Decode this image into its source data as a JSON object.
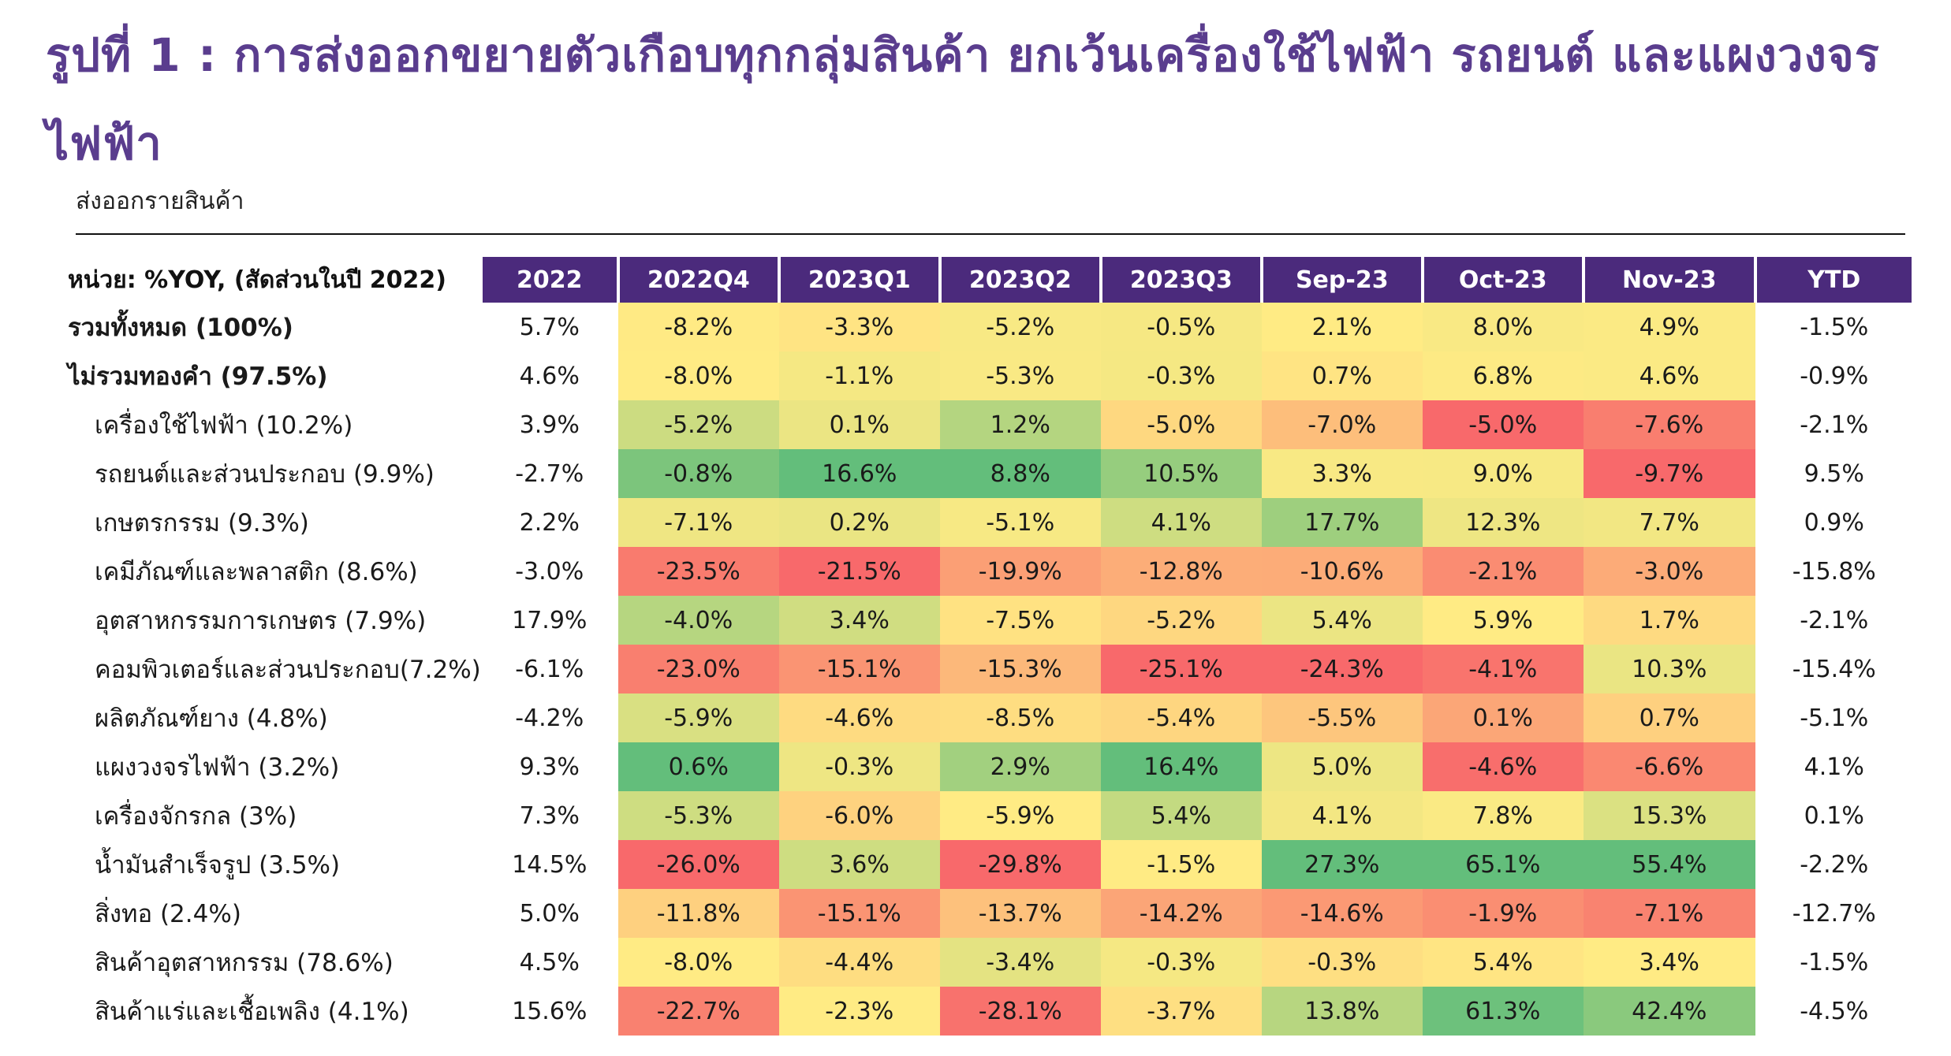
{
  "title": "รูปที่ 1 : การส่งออกขยายตัวเกือบทุกกลุ่มสินค้า ยกเว้นเครื่องใช้ไฟฟ้า รถยนต์ และแผงวงจรไฟฟ้า",
  "subtitle": "ส่งออกรายสินค้า",
  "colors": {
    "title": "#5a3d8e",
    "header_bg": "#4b2a7c",
    "low": "#f8696b",
    "mid": "#ffeb84",
    "high": "#63be7b"
  },
  "chart_data": {
    "type": "heatmap",
    "unit_label": "หน่วย: %YOY, (สัดส่วนในปี 2022)",
    "columns": [
      "2022",
      "2022Q4",
      "2023Q1",
      "2023Q2",
      "2023Q3",
      "Sep-23",
      "Oct-23",
      "Nov-23",
      "YTD"
    ],
    "colored_columns": [
      1,
      2,
      3,
      4,
      5,
      6,
      7
    ],
    "rows": [
      {
        "label": "รวมทั้งหมด (100%)",
        "level": 0,
        "values": [
          "5.7%",
          "-8.2%",
          "-3.3%",
          "-5.2%",
          "-0.5%",
          "2.1%",
          "8.0%",
          "4.9%",
          "-1.5%"
        ]
      },
      {
        "label": "ไม่รวมทองคำ (97.5%)",
        "level": 0,
        "values": [
          "4.6%",
          "-8.0%",
          "-1.1%",
          "-5.3%",
          "-0.3%",
          "0.7%",
          "6.8%",
          "4.6%",
          "-0.9%"
        ]
      },
      {
        "label": "เครื่องใช้ไฟฟ้า (10.2%)",
        "level": 1,
        "values": [
          "3.9%",
          "-5.2%",
          "0.1%",
          "1.2%",
          "-5.0%",
          "-7.0%",
          "-5.0%",
          "-7.6%",
          "-2.1%"
        ]
      },
      {
        "label": "รถยนต์และส่วนประกอบ (9.9%)",
        "level": 1,
        "values": [
          "-2.7%",
          "-0.8%",
          "16.6%",
          "8.8%",
          "10.5%",
          "3.3%",
          "9.0%",
          "-9.7%",
          "9.5%"
        ]
      },
      {
        "label": "เกษตรกรรม (9.3%)",
        "level": 1,
        "values": [
          "2.2%",
          "-7.1%",
          "0.2%",
          "-5.1%",
          "4.1%",
          "17.7%",
          "12.3%",
          "7.7%",
          "0.9%"
        ]
      },
      {
        "label": "เคมีภัณฑ์และพลาสติก (8.6%)",
        "level": 1,
        "values": [
          "-3.0%",
          "-23.5%",
          "-21.5%",
          "-19.9%",
          "-12.8%",
          "-10.6%",
          "-2.1%",
          "-3.0%",
          "-15.8%"
        ]
      },
      {
        "label": "อุตสาหกรรมการเกษตร (7.9%)",
        "level": 1,
        "values": [
          "17.9%",
          "-4.0%",
          "3.4%",
          "-7.5%",
          "-5.2%",
          "5.4%",
          "5.9%",
          "1.7%",
          "-2.1%"
        ]
      },
      {
        "label": "คอมพิวเตอร์และส่วนประกอบ(7.2%)",
        "level": 1,
        "values": [
          "-6.1%",
          "-23.0%",
          "-15.1%",
          "-15.3%",
          "-25.1%",
          "-24.3%",
          "-4.1%",
          "10.3%",
          "-15.4%"
        ]
      },
      {
        "label": "ผลิตภัณฑ์ยาง (4.8%)",
        "level": 1,
        "values": [
          "-4.2%",
          "-5.9%",
          "-4.6%",
          "-8.5%",
          "-5.4%",
          "-5.5%",
          "0.1%",
          "0.7%",
          "-5.1%"
        ]
      },
      {
        "label": "แผงวงจรไฟฟ้า (3.2%)",
        "level": 1,
        "values": [
          "9.3%",
          "0.6%",
          "-0.3%",
          "2.9%",
          "16.4%",
          "5.0%",
          "-4.6%",
          "-6.6%",
          "4.1%"
        ]
      },
      {
        "label": "เครื่องจักรกล (3%)",
        "level": 1,
        "values": [
          "7.3%",
          "-5.3%",
          "-6.0%",
          "-5.9%",
          "5.4%",
          "4.1%",
          "7.8%",
          "15.3%",
          "0.1%"
        ]
      },
      {
        "label": "น้ำมันสำเร็จรูป (3.5%)",
        "level": 1,
        "values": [
          "14.5%",
          "-26.0%",
          "3.6%",
          "-29.8%",
          "-1.5%",
          "27.3%",
          "65.1%",
          "55.4%",
          "-2.2%"
        ]
      },
      {
        "label": "สิ่งทอ (2.4%)",
        "level": 1,
        "values": [
          "5.0%",
          "-11.8%",
          "-15.1%",
          "-13.7%",
          "-14.2%",
          "-14.6%",
          "-1.9%",
          "-7.1%",
          "-12.7%"
        ]
      },
      {
        "label": "สินค้าอุตสาหกรรม (78.6%)",
        "level": 1,
        "values": [
          "4.5%",
          "-8.0%",
          "-4.4%",
          "-3.4%",
          "-0.3%",
          "-0.3%",
          "5.4%",
          "3.4%",
          "-1.5%"
        ]
      },
      {
        "label": "สินค้าแร่และเชื้อเพลิง (4.1%)",
        "level": 1,
        "values": [
          "15.6%",
          "-22.7%",
          "-2.3%",
          "-28.1%",
          "-3.7%",
          "13.8%",
          "61.3%",
          "42.4%",
          "-4.5%"
        ]
      }
    ]
  }
}
